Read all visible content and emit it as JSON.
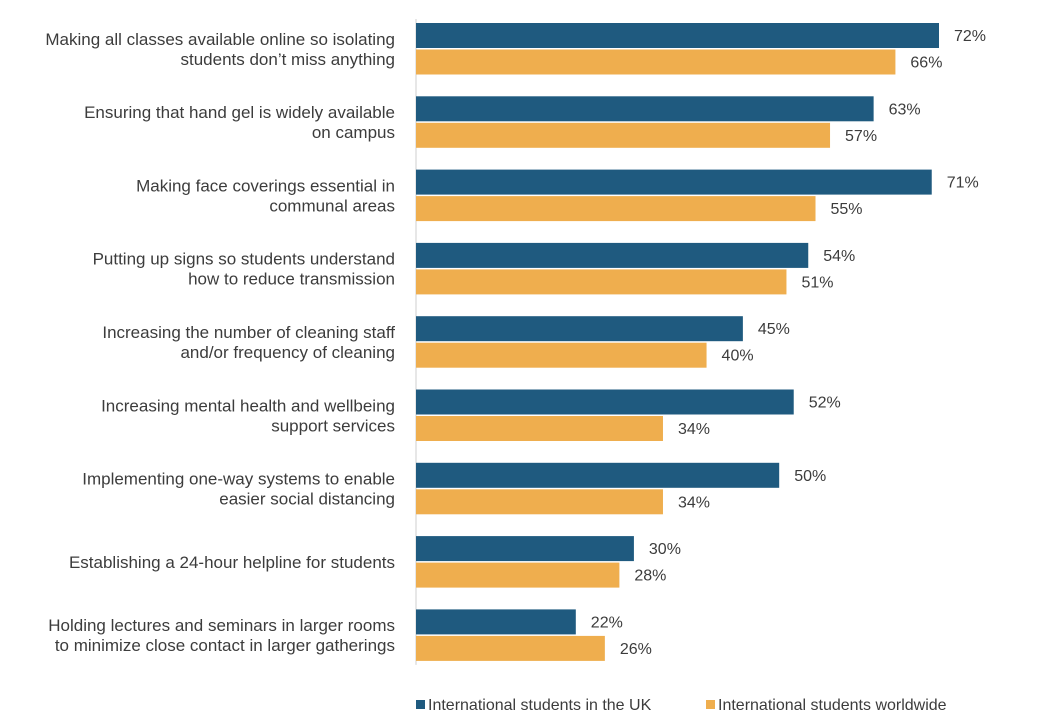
{
  "chart_data": {
    "type": "bar",
    "orientation": "horizontal",
    "categories": [
      [
        "Making all classes available online so isolating",
        "students don’t  miss anything"
      ],
      [
        "Ensuring that hand gel is widely available",
        "on campus"
      ],
      [
        "Making face coverings essential in",
        "communal areas"
      ],
      [
        "Putting up signs so students understand",
        "how to reduce transmission"
      ],
      [
        "Increasing the number of cleaning staff",
        "and/or frequency of cleaning"
      ],
      [
        "Increasing mental health and wellbeing",
        "support services"
      ],
      [
        "Implementing one-way systems to enable",
        "easier social distancing"
      ],
      [
        "Establishing a 24-hour helpline for students"
      ],
      [
        "Holding lectures and seminars in larger rooms",
        "to minimize close contact in larger gatherings"
      ]
    ],
    "series": [
      {
        "name": "International students in the UK",
        "color": "#1f5a7f",
        "values": [
          72,
          63,
          71,
          54,
          45,
          52,
          50,
          30,
          22
        ]
      },
      {
        "name": "International students worldwide",
        "color": "#efae4e",
        "values": [
          66,
          57,
          55,
          51,
          40,
          34,
          34,
          28,
          26
        ]
      }
    ],
    "value_suffix": "%",
    "xlim": [
      0,
      72
    ],
    "grid": false,
    "legend_position": "bottom-right"
  }
}
